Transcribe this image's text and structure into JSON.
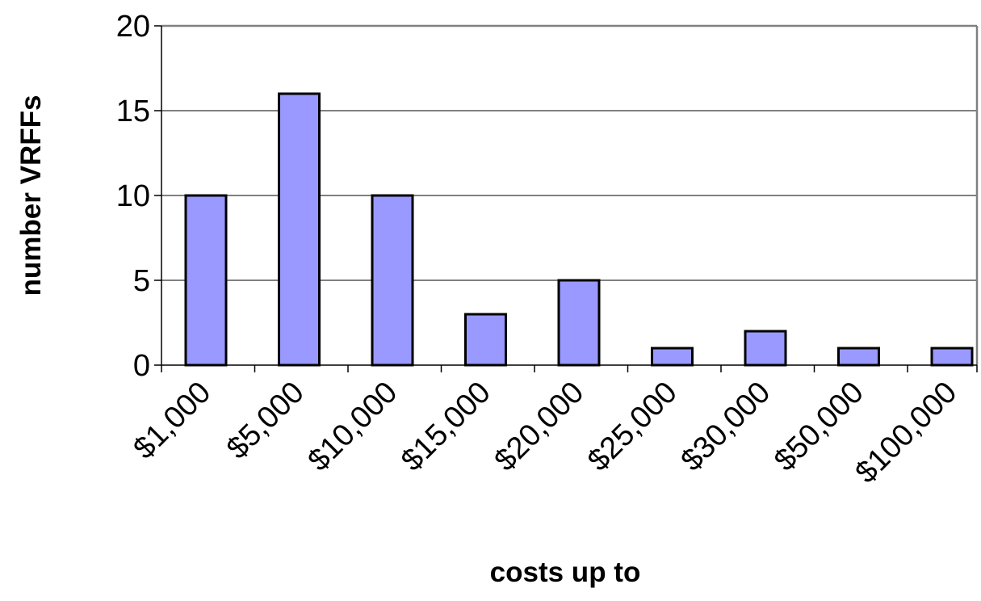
{
  "chart_data": {
    "type": "bar",
    "title": "",
    "xlabel": "costs up to",
    "ylabel": "number VRFFs",
    "categories": [
      "$1,000",
      "$5,000",
      "$10,000",
      "$15,000",
      "$20,000",
      "$25,000",
      "$30,000",
      "$50,000",
      "$100,000"
    ],
    "values": [
      10,
      16,
      10,
      3,
      5,
      1,
      2,
      1,
      1
    ],
    "ylim": [
      0,
      20
    ],
    "yticks": [
      0,
      5,
      10,
      15,
      20
    ],
    "grid": true,
    "legend": "none",
    "colors": {
      "bar_fill": "#9999ff",
      "bar_stroke": "#000000",
      "gridline": "#000000",
      "plot_border": "#808080"
    }
  }
}
